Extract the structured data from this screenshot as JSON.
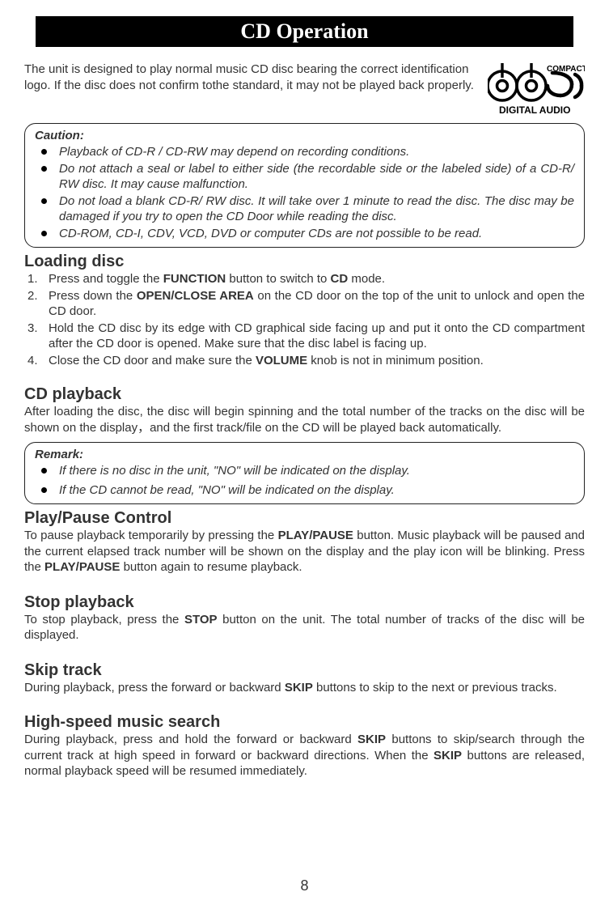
{
  "title": "CD Operation",
  "intro": "The unit is designed to play normal music CD disc bearing the correct identification logo. If the disc does not confirm tothe standard, it may not be played back properly.",
  "logo": {
    "top": "COMPACT",
    "bottom": "DIGITAL AUDIO"
  },
  "caution": {
    "heading": "Caution:",
    "items": [
      "Playback of CD-R / CD-RW may depend on recording conditions.",
      "Do not attach a seal or label to either side (the recordable side or the labeled side) of a CD-R/ RW disc. It may cause malfunction.",
      "Do not load a blank CD-R/ RW disc. It will take over 1 minute to read the disc. The disc may be damaged if you try to open the CD Door while reading the disc.",
      "CD-ROM, CD-I, CDV, VCD, DVD or computer CDs are not possible to be read."
    ]
  },
  "loading": {
    "heading": "Loading disc",
    "steps": [
      "Press and toggle the <b>FUNCTION</b> button to switch to <b>CD</b> mode.",
      "Press down the <b>OPEN/CLOSE AREA</b> on the CD door on the top of the unit to unlock and open the CD door.",
      "Hold the CD disc by its edge with CD graphical side facing up and put it onto the CD compartment after the CD door is opened. Make sure that the disc label is facing up.",
      "Close the CD door and make sure the <b>VOLUME</b> knob is not in minimum position."
    ]
  },
  "playback": {
    "heading": "CD playback",
    "text": "After loading the disc, the disc will begin spinning and the total number of the tracks on the disc will be shown on the display，and the first track/file on the CD will be played back automatically."
  },
  "remark": {
    "heading": "Remark:",
    "items": [
      "If there is no disc in the unit, \"NO\" will be indicated on the display.",
      "If the CD cannot be read, \"NO\" will be indicated on the display."
    ]
  },
  "playpause": {
    "heading": "Play/Pause Control",
    "text": "To pause playback temporarily by pressing the <b>PLAY/PAUSE</b> button. Music playback will be paused and the current elapsed track number will be shown on the display and the play icon will be blinking. Press the <b>PLAY/PAUSE</b> button again to resume playback."
  },
  "stop": {
    "heading": "Stop playback",
    "text": "To stop playback, press the <b>STOP</b> button on the unit. The total number of tracks of the disc will be displayed."
  },
  "skip": {
    "heading": "Skip track",
    "text": "During playback, press the forward or backward <b>SKIP</b> buttons to skip to the next or previous tracks."
  },
  "search": {
    "heading": "High-speed music search",
    "text": "During playback, press and hold the forward or backward <b>SKIP</b> buttons to skip/search through the current track at high speed in forward or backward directions. When the <b>SKIP</b> buttons are released, normal playback speed will be resumed immediately."
  },
  "pageNumber": "8"
}
